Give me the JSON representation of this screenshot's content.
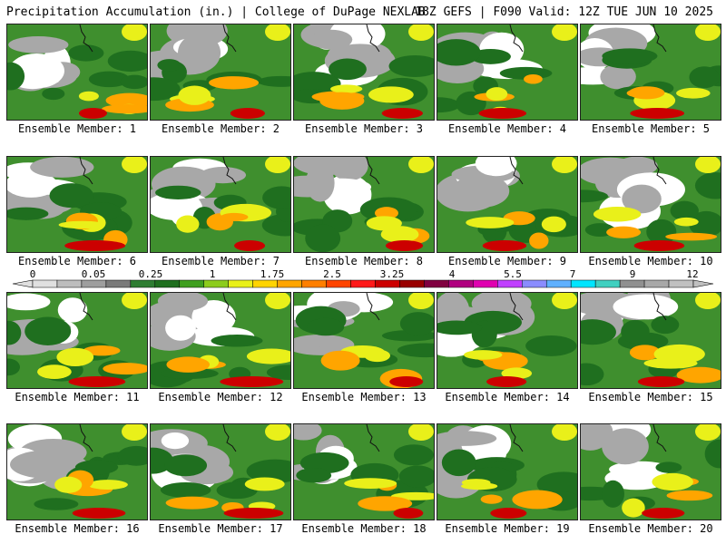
{
  "header": {
    "title": "Precipitation Accumulation (in.) | College of DuPage NEXLAB",
    "run_info": "18Z GEFS | F090 Valid: 12Z TUE JUN 10 2025"
  },
  "colorbar": {
    "tick_labels": [
      "0",
      "0.05",
      "0.25",
      "1",
      "1.75",
      "2.5",
      "3.25",
      "4",
      "5.5",
      "7",
      "9",
      "12"
    ],
    "colors": [
      "#e0e0e0",
      "#bdbdbd",
      "#9e9e9e",
      "#7a7a7a",
      "#2e7d32",
      "#1f6f1f",
      "#3f9f1f",
      "#8ccc1c",
      "#e9f01a",
      "#ffd400",
      "#ffa500",
      "#ff7f00",
      "#ff4500",
      "#ff1a1a",
      "#cc0000",
      "#990000",
      "#800040",
      "#b0007f",
      "#e000b0",
      "#c040ff",
      "#8a8cff",
      "#5fb0ff",
      "#00e5ff",
      "#40d0c0",
      "#909090",
      "#a8a8a8",
      "#c0c0c0"
    ]
  },
  "members": [
    {
      "label": "Ensemble Member: 1"
    },
    {
      "label": "Ensemble Member: 2"
    },
    {
      "label": "Ensemble Member: 3"
    },
    {
      "label": "Ensemble Member: 4"
    },
    {
      "label": "Ensemble Member: 5"
    },
    {
      "label": "Ensemble Member: 6"
    },
    {
      "label": "Ensemble Member: 7"
    },
    {
      "label": "Ensemble Member: 8"
    },
    {
      "label": "Ensemble Member: 9"
    },
    {
      "label": "Ensemble Member: 10"
    },
    {
      "label": "Ensemble Member: 11"
    },
    {
      "label": "Ensemble Member: 12"
    },
    {
      "label": "Ensemble Member: 13"
    },
    {
      "label": "Ensemble Member: 14"
    },
    {
      "label": "Ensemble Member: 15"
    },
    {
      "label": "Ensemble Member: 16"
    },
    {
      "label": "Ensemble Member: 17"
    },
    {
      "label": "Ensemble Member: 18"
    },
    {
      "label": "Ensemble Member: 19"
    },
    {
      "label": "Ensemble Member: 20"
    }
  ]
}
